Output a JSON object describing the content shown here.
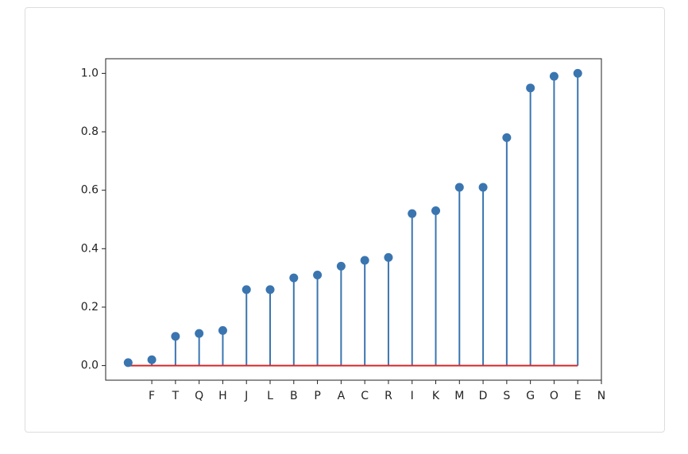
{
  "chart_data": {
    "type": "stem",
    "x": [
      0,
      1,
      2,
      3,
      4,
      5,
      6,
      7,
      8,
      9,
      10,
      11,
      12,
      13,
      14,
      15,
      16,
      17,
      18,
      19
    ],
    "values": [
      0.01,
      0.02,
      0.1,
      0.11,
      0.12,
      0.26,
      0.26,
      0.3,
      0.31,
      0.34,
      0.36,
      0.37,
      0.52,
      0.53,
      0.61,
      0.61,
      0.78,
      0.95,
      0.99,
      1.0
    ],
    "color": "#3a75b0",
    "baseline_color": "#d62728",
    "xlim": [
      -0.95,
      20
    ],
    "ylim": [
      -0.05,
      1.05
    ],
    "xticks": [
      {
        "value": 1,
        "label": "F"
      },
      {
        "value": 2,
        "label": "T"
      },
      {
        "value": 3,
        "label": "Q"
      },
      {
        "value": 4,
        "label": "H"
      },
      {
        "value": 5,
        "label": "J"
      },
      {
        "value": 6,
        "label": "L"
      },
      {
        "value": 7,
        "label": "B"
      },
      {
        "value": 8,
        "label": "P"
      },
      {
        "value": 9,
        "label": "A"
      },
      {
        "value": 10,
        "label": "C"
      },
      {
        "value": 11,
        "label": "R"
      },
      {
        "value": 12,
        "label": "I"
      },
      {
        "value": 13,
        "label": "K"
      },
      {
        "value": 14,
        "label": "M"
      },
      {
        "value": 15,
        "label": "D"
      },
      {
        "value": 16,
        "label": "S"
      },
      {
        "value": 17,
        "label": "G"
      },
      {
        "value": 18,
        "label": "O"
      },
      {
        "value": 19,
        "label": "E"
      },
      {
        "value": 20,
        "label": "N"
      }
    ],
    "yticks": [
      {
        "value": 0,
        "label": "0.0"
      },
      0.2,
      0.4,
      0.6,
      0.8,
      {
        "value": 1,
        "label": "1.0"
      }
    ]
  }
}
